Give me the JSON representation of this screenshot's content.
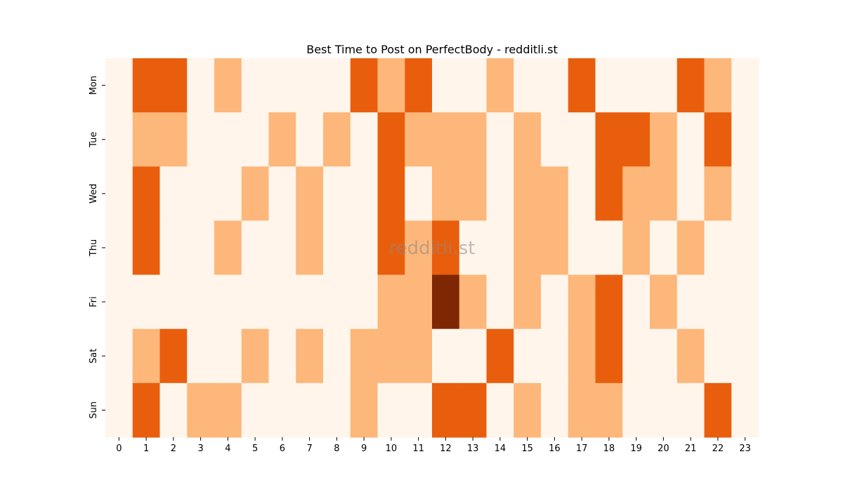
{
  "chart_data": {
    "type": "heatmap",
    "title": "Best Time to Post on PerfectBody - redditli.st",
    "xlabel": "",
    "ylabel": "",
    "x_categories": [
      "0",
      "1",
      "2",
      "3",
      "4",
      "5",
      "6",
      "7",
      "8",
      "9",
      "10",
      "11",
      "12",
      "13",
      "14",
      "15",
      "16",
      "17",
      "18",
      "19",
      "20",
      "21",
      "22",
      "23"
    ],
    "y_categories": [
      "Mon",
      "Tue",
      "Wed",
      "Thu",
      "Fri",
      "Sat",
      "Sun"
    ],
    "values": [
      [
        0,
        2,
        2,
        0,
        1,
        0,
        0,
        0,
        0,
        2,
        1,
        2,
        0,
        0,
        1,
        0,
        0,
        2,
        0,
        0,
        0,
        2,
        1,
        0
      ],
      [
        0,
        1,
        1,
        0,
        0,
        0,
        1,
        0,
        1,
        0,
        2,
        1,
        1,
        1,
        0,
        1,
        0,
        0,
        2,
        2,
        1,
        0,
        2,
        0
      ],
      [
        0,
        2,
        0,
        0,
        0,
        1,
        0,
        1,
        0,
        0,
        2,
        0,
        1,
        1,
        0,
        1,
        1,
        0,
        2,
        1,
        1,
        0,
        1,
        0
      ],
      [
        0,
        2,
        0,
        0,
        1,
        0,
        0,
        1,
        0,
        0,
        2,
        1,
        2,
        0,
        0,
        1,
        1,
        0,
        0,
        1,
        0,
        1,
        0,
        0
      ],
      [
        0,
        0,
        0,
        0,
        0,
        0,
        0,
        0,
        0,
        0,
        1,
        1,
        3,
        1,
        0,
        1,
        0,
        1,
        2,
        0,
        1,
        0,
        0,
        0
      ],
      [
        0,
        1,
        2,
        0,
        0,
        1,
        0,
        1,
        0,
        1,
        1,
        1,
        0,
        0,
        2,
        0,
        0,
        1,
        2,
        0,
        0,
        1,
        0,
        0
      ],
      [
        0,
        2,
        0,
        1,
        1,
        0,
        0,
        0,
        0,
        1,
        0,
        0,
        2,
        2,
        0,
        1,
        0,
        1,
        1,
        0,
        0,
        0,
        2,
        0
      ]
    ],
    "colormap": [
      "#fff5eb",
      "#fdb77a",
      "#e95e0d",
      "#7f2704"
    ],
    "watermark": "redditli.st",
    "colorbar": false
  }
}
